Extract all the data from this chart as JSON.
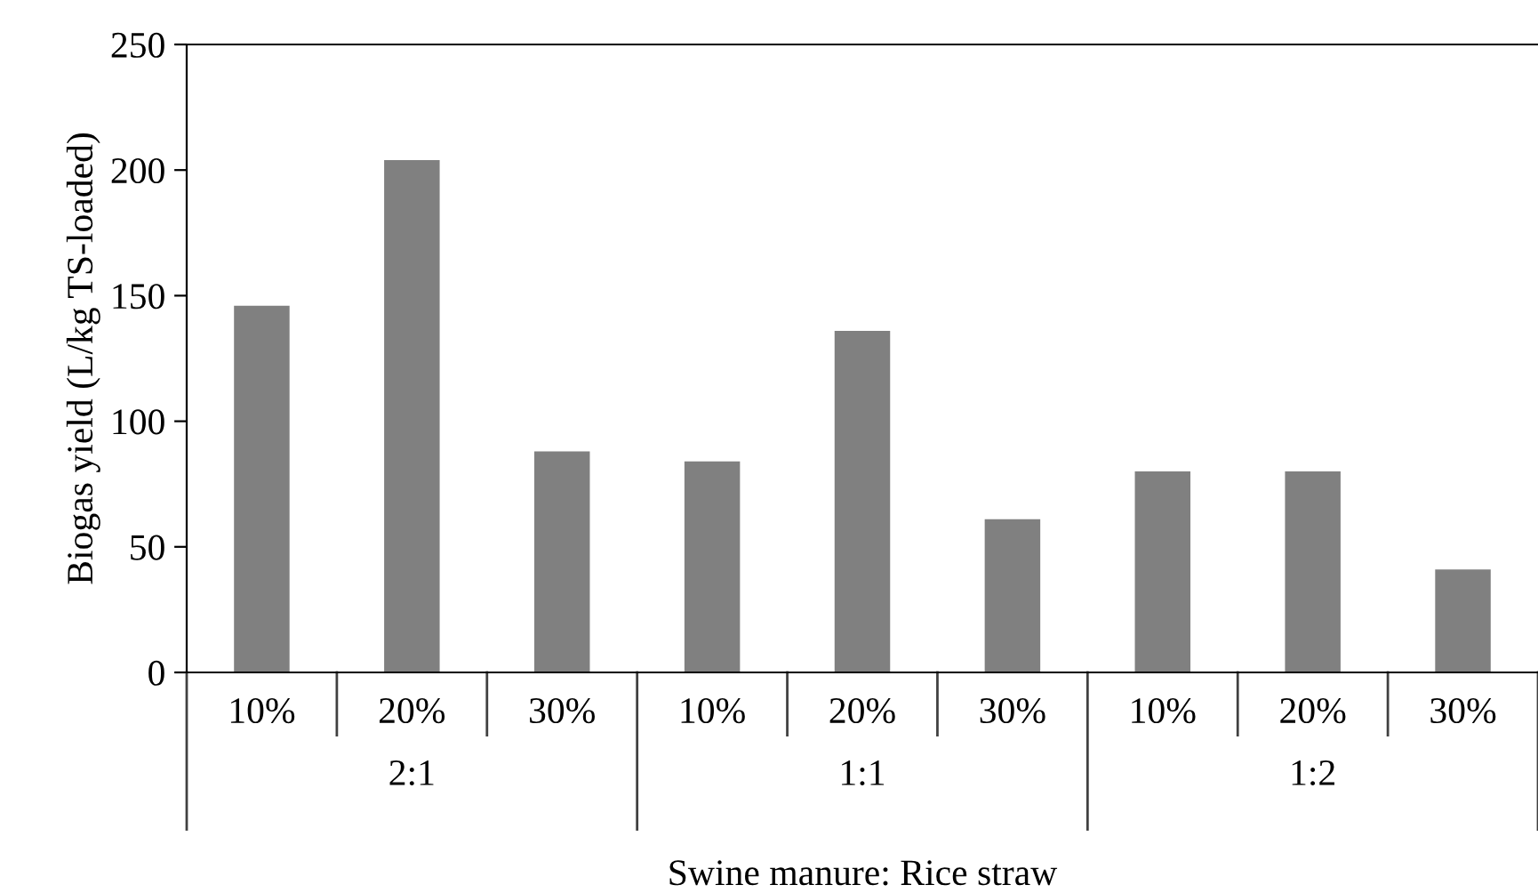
{
  "chart_data": {
    "type": "bar",
    "ylabel": "Biogas yield (L/kg TS-loaded)",
    "xlabel": "Swine manure: Rice straw",
    "categories": [
      "10%",
      "20%",
      "30%",
      "10%",
      "20%",
      "30%",
      "10%",
      "20%",
      "30%"
    ],
    "values": [
      146,
      204,
      88,
      84,
      136,
      61,
      80,
      80,
      41
    ],
    "color": "#808080",
    "annotations": [
      "2:1",
      "1:1",
      "1:2"
    ],
    "ylim": [
      0,
      250
    ],
    "yticks": [
      0,
      50,
      100,
      150,
      200,
      250
    ],
    "grid": false,
    "legend": false
  }
}
